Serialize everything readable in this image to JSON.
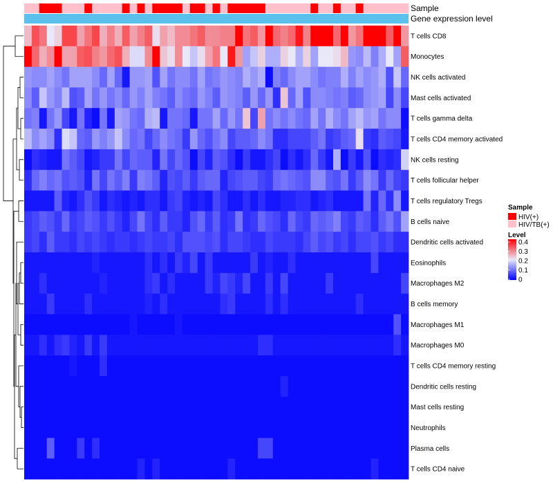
{
  "chart_data": {
    "type": "heatmap",
    "title": "",
    "annotation_tracks": [
      {
        "name": "Sample",
        "label": "Sample"
      },
      {
        "name": "Gene expression level",
        "label": "Gene expression level"
      }
    ],
    "legend_sample": {
      "title": "Sample",
      "entries": [
        {
          "label": "HIV(+)",
          "color": "#ff0000"
        },
        {
          "label": "HIV/TB(+)",
          "color": "#ffc0cb"
        }
      ]
    },
    "legend_level": {
      "title": "Level",
      "ticks": [
        {
          "value": 0.4,
          "label": "0.4"
        },
        {
          "value": 0.3,
          "label": "0.3"
        },
        {
          "value": 0.2,
          "label": "0.2"
        },
        {
          "value": 0.1,
          "label": "0.1"
        },
        {
          "value": 0,
          "label": "0"
        }
      ],
      "range": [
        0,
        0.4
      ],
      "colors": {
        "low": "#0000ff",
        "mid": "#e8e8f8",
        "high": "#ff0000"
      }
    },
    "expression_bar_color": "#5bc0eb",
    "sample_groups": [
      "HIV/TB(+)",
      "HIV/TB(+)",
      "HIV(+)",
      "HIV(+)",
      "HIV(+)",
      "HIV/TB(+)",
      "HIV/TB(+)",
      "HIV/TB(+)",
      "HIV(+)",
      "HIV/TB(+)",
      "HIV/TB(+)",
      "HIV/TB(+)",
      "HIV/TB(+)",
      "HIV(+)",
      "HIV/TB(+)",
      "HIV(+)",
      "HIV/TB(+)",
      "HIV(+)",
      "HIV(+)",
      "HIV(+)",
      "HIV(+)",
      "HIV/TB(+)",
      "HIV(+)",
      "HIV(+)",
      "HIV/TB(+)",
      "HIV(+)",
      "HIV/TB(+)",
      "HIV(+)",
      "HIV(+)",
      "HIV(+)",
      "HIV(+)",
      "HIV(+)",
      "HIV/TB(+)",
      "HIV/TB(+)",
      "HIV/TB(+)",
      "HIV/TB(+)",
      "HIV/TB(+)",
      "HIV/TB(+)",
      "HIV(+)",
      "HIV/TB(+)",
      "HIV/TB(+)",
      "HIV(+)",
      "HIV/TB(+)",
      "HIV/TB(+)",
      "HIV(+)",
      "HIV/TB(+)",
      "HIV/TB(+)",
      "HIV/TB(+)",
      "HIV/TB(+)",
      "HIV/TB(+)",
      "HIV/TB(+)"
    ],
    "rows": [
      "T cells CD8",
      "Monocytes",
      "NK cells activated",
      "Mast cells activated",
      "T cells gamma delta",
      "T cells CD4 memory activated",
      "NK cells resting",
      "T cells follicular helper",
      "T cells regulatory  Tregs",
      "B cells naive",
      "Dendritic cells activated",
      "Eosinophils",
      "Macrophages M2",
      "B cells memory",
      "Macrophages M1",
      "Macrophages M0",
      "T cells CD4 memory resting",
      "Dendritic cells resting",
      "Mast cells resting",
      "Neutrophils",
      "Plasma cells",
      "T cells CD4 naive"
    ],
    "values": [
      [
        0.24,
        0.33,
        0.3,
        0.2,
        0.22,
        0.34,
        0.34,
        0.26,
        0.3,
        0.34,
        0.25,
        0.29,
        0.25,
        0.32,
        0.26,
        0.29,
        0.32,
        0.21,
        0.26,
        0.24,
        0.28,
        0.28,
        0.3,
        0.32,
        0.28,
        0.28,
        0.29,
        0.29,
        0.4,
        0.3,
        0.32,
        0.27,
        0.4,
        0.31,
        0.29,
        0.31,
        0.38,
        0.29,
        0.4,
        0.4,
        0.4,
        0.31,
        0.4,
        0.27,
        0.3,
        0.4,
        0.4,
        0.4,
        0.32,
        0.4,
        0.27
      ],
      [
        0.4,
        0.31,
        0.25,
        0.28,
        0.4,
        0.26,
        0.26,
        0.32,
        0.33,
        0.29,
        0.27,
        0.31,
        0.33,
        0.25,
        0.19,
        0.19,
        0.28,
        0.4,
        0.23,
        0.21,
        0.28,
        0.2,
        0.17,
        0.21,
        0.26,
        0.3,
        0.2,
        0.38,
        0.27,
        0.14,
        0.17,
        0.22,
        0.15,
        0.15,
        0.22,
        0.2,
        0.15,
        0.22,
        0.14,
        0.2,
        0.2,
        0.21,
        0.24,
        0.13,
        0.12,
        0.16,
        0.11,
        0.15,
        0.2,
        0.14,
        0.32
      ],
      [
        0.13,
        0.12,
        0.12,
        0.14,
        0.12,
        0.1,
        0.14,
        0.14,
        0.14,
        0.12,
        0.09,
        0.14,
        0.09,
        0.02,
        0.13,
        0.13,
        0.14,
        0.07,
        0.14,
        0.1,
        0.12,
        0.12,
        0.1,
        0.14,
        0.1,
        0.11,
        0.13,
        0.12,
        0.11,
        0.15,
        0.13,
        0.15,
        0.01,
        0.11,
        0.09,
        0.12,
        0.14,
        0.14,
        0.12,
        0.1,
        0.11,
        0.11,
        0.15,
        0.11,
        0.14,
        0.12,
        0.13,
        0.15,
        0.07,
        0.17,
        0.09
      ],
      [
        0.12,
        0.08,
        0.17,
        0.13,
        0.11,
        0.16,
        0.07,
        0.08,
        0.14,
        0.1,
        0.13,
        0.1,
        0.12,
        0.09,
        0.13,
        0.11,
        0.14,
        0.11,
        0.1,
        0.08,
        0.12,
        0.1,
        0.09,
        0.13,
        0.11,
        0.08,
        0.13,
        0.12,
        0.11,
        0.08,
        0.13,
        0.09,
        0.13,
        0.04,
        0.23,
        0.09,
        0.14,
        0.07,
        0.12,
        0.12,
        0.11,
        0.1,
        0.11,
        0.08,
        0.09,
        0.12,
        0.13,
        0.14,
        0.06,
        0.12,
        0.06
      ],
      [
        0.1,
        0.11,
        0.02,
        0.1,
        0.13,
        0.06,
        0.02,
        0.1,
        0.03,
        0.01,
        0.1,
        0.02,
        0.14,
        0.13,
        0.1,
        0.09,
        0.15,
        0.16,
        0.02,
        0.1,
        0.1,
        0.09,
        0.02,
        0.1,
        0.1,
        0.14,
        0.09,
        0.13,
        0.1,
        0.23,
        0.06,
        0.26,
        0.1,
        0.12,
        0.1,
        0.12,
        0.1,
        0.09,
        0.14,
        0.1,
        0.15,
        0.12,
        0.1,
        0.14,
        0.16,
        0.13,
        0.14,
        0.1,
        0.12,
        0.12,
        0.01
      ],
      [
        0.16,
        0.12,
        0.14,
        0.12,
        0.04,
        0.19,
        0.17,
        0.09,
        0.08,
        0.13,
        0.11,
        0.13,
        0.17,
        0.12,
        0.09,
        0.1,
        0.06,
        0.09,
        0.12,
        0.1,
        0.09,
        0.05,
        0.13,
        0.09,
        0.07,
        0.1,
        0.12,
        0.06,
        0.08,
        0.08,
        0.09,
        0.12,
        0.1,
        0.04,
        0.04,
        0.06,
        0.06,
        0.06,
        0.08,
        0.1,
        0.05,
        0.06,
        0.08,
        0.09,
        0.21,
        0.05,
        0.04,
        0.08,
        0.07,
        0.06,
        0.02
      ],
      [
        0.01,
        0.04,
        0.03,
        0.02,
        0.02,
        0.1,
        0.08,
        0.06,
        0.02,
        0.03,
        0.05,
        0.05,
        0.1,
        0.06,
        0.09,
        0.08,
        0.08,
        0.03,
        0.1,
        0.06,
        0.09,
        0.07,
        0.01,
        0.06,
        0.03,
        0.08,
        0.07,
        0.04,
        0.01,
        0.05,
        0.02,
        0.02,
        0.04,
        0.06,
        0.01,
        0.04,
        0.02,
        0.04,
        0.09,
        0.05,
        0.02,
        0.15,
        0.01,
        0.05,
        0.02,
        0.07,
        0.01,
        0.04,
        0.03,
        0.04,
        0.18
      ],
      [
        0.04,
        0.09,
        0.11,
        0.09,
        0.1,
        0.07,
        0.08,
        0.07,
        0.03,
        0.1,
        0.06,
        0.1,
        0.08,
        0.11,
        0.05,
        0.11,
        0.1,
        0.08,
        0.03,
        0.07,
        0.06,
        0.08,
        0.05,
        0.08,
        0.09,
        0.09,
        0.03,
        0.06,
        0.07,
        0.08,
        0.08,
        0.06,
        0.05,
        0.09,
        0.1,
        0.09,
        0.08,
        0.07,
        0.12,
        0.12,
        0.08,
        0.07,
        0.1,
        0.05,
        0.08,
        0.12,
        0.1,
        0.05,
        0.09,
        0.06,
        0.05
      ],
      [
        0.02,
        0.02,
        0.02,
        0.02,
        0.08,
        0.03,
        0.02,
        0.04,
        0.07,
        0.05,
        0.02,
        0.04,
        0.03,
        0.02,
        0.03,
        0.02,
        0.04,
        0.04,
        0.02,
        0.05,
        0.06,
        0.03,
        0.02,
        0.03,
        0.02,
        0.06,
        0.04,
        0.02,
        0.02,
        0.04,
        0.02,
        0.04,
        0.02,
        0.02,
        0.03,
        0.03,
        0.04,
        0.04,
        0.02,
        0.03,
        0.04,
        0.02,
        0.02,
        0.02,
        0.02,
        0.1,
        0.03,
        0.09,
        0.04,
        0.12,
        0.02
      ],
      [
        0.05,
        0.06,
        0.08,
        0.07,
        0.05,
        0.09,
        0.05,
        0.06,
        0.08,
        0.07,
        0.05,
        0.07,
        0.05,
        0.03,
        0.06,
        0.1,
        0.06,
        0.04,
        0.08,
        0.05,
        0.05,
        0.03,
        0.07,
        0.09,
        0.05,
        0.08,
        0.04,
        0.05,
        0.1,
        0.04,
        0.05,
        0.09,
        0.07,
        0.06,
        0.04,
        0.09,
        0.06,
        0.05,
        0.09,
        0.08,
        0.09,
        0.11,
        0.06,
        0.05,
        0.08,
        0.07,
        0.04,
        0.08,
        0.1,
        0.07,
        0.14
      ],
      [
        0.05,
        0.06,
        0.04,
        0.08,
        0.05,
        0.05,
        0.04,
        0.06,
        0.05,
        0.06,
        0.05,
        0.04,
        0.05,
        0.05,
        0.04,
        0.05,
        0.06,
        0.05,
        0.05,
        0.06,
        0.04,
        0.07,
        0.07,
        0.07,
        0.06,
        0.07,
        0.04,
        0.06,
        0.06,
        0.05,
        0.04,
        0.04,
        0.06,
        0.05,
        0.05,
        0.05,
        0.04,
        0.06,
        0.08,
        0.06,
        0.07,
        0.05,
        0.06,
        0.04,
        0.06,
        0.06,
        0.07,
        0.05,
        0.06,
        0.04,
        0.04
      ],
      [
        0.02,
        0.02,
        0.02,
        0.02,
        0.02,
        0.02,
        0.02,
        0.02,
        0.02,
        0.03,
        0.02,
        0.02,
        0.02,
        0.02,
        0.02,
        0.02,
        0.04,
        0.02,
        0.04,
        0.02,
        0.05,
        0.03,
        0.06,
        0.02,
        0.05,
        0.02,
        0.02,
        0.02,
        0.02,
        0.02,
        0.05,
        0.02,
        0.03,
        0.02,
        0.02,
        0.04,
        0.02,
        0.02,
        0.02,
        0.02,
        0.02,
        0.02,
        0.02,
        0.02,
        0.02,
        0.02,
        0.06,
        0.02,
        0.02,
        0.02,
        0.02
      ],
      [
        0.02,
        0.02,
        0.04,
        0.02,
        0.02,
        0.02,
        0.02,
        0.02,
        0.02,
        0.02,
        0.03,
        0.02,
        0.02,
        0.02,
        0.02,
        0.02,
        0.04,
        0.05,
        0.02,
        0.04,
        0.02,
        0.02,
        0.02,
        0.02,
        0.05,
        0.03,
        0.06,
        0.05,
        0.03,
        0.06,
        0.02,
        0.02,
        0.05,
        0.02,
        0.06,
        0.02,
        0.02,
        0.02,
        0.02,
        0.02,
        0.05,
        0.02,
        0.02,
        0.02,
        0.02,
        0.02,
        0.02,
        0.02,
        0.02,
        0.02,
        0.06
      ],
      [
        0.02,
        0.02,
        0.02,
        0.05,
        0.02,
        0.02,
        0.02,
        0.02,
        0.04,
        0.02,
        0.02,
        0.02,
        0.02,
        0.02,
        0.02,
        0.02,
        0.03,
        0.02,
        0.04,
        0.02,
        0.02,
        0.02,
        0.02,
        0.02,
        0.02,
        0.02,
        0.04,
        0.05,
        0.02,
        0.02,
        0.02,
        0.02,
        0.04,
        0.02,
        0.04,
        0.02,
        0.02,
        0.02,
        0.02,
        0.02,
        0.02,
        0.02,
        0.02,
        0.02,
        0.04,
        0.02,
        0.02,
        0.02,
        0.02,
        0.02,
        0.02
      ],
      [
        0.01,
        0.01,
        0.01,
        0.01,
        0.01,
        0.01,
        0.01,
        0.01,
        0.01,
        0.01,
        0.01,
        0.01,
        0.01,
        0.01,
        0.02,
        0.01,
        0.01,
        0.01,
        0.01,
        0.01,
        0.02,
        0.01,
        0.01,
        0.01,
        0.01,
        0.01,
        0.01,
        0.01,
        0.01,
        0.01,
        0.01,
        0.01,
        0.01,
        0.01,
        0.01,
        0.01,
        0.01,
        0.01,
        0.01,
        0.01,
        0.01,
        0.01,
        0.01,
        0.01,
        0.01,
        0.01,
        0.01,
        0.01,
        0.01,
        0.07,
        0.01
      ],
      [
        0.02,
        0.02,
        0.04,
        0.02,
        0.04,
        0.05,
        0.03,
        0.02,
        0.05,
        0.02,
        0.05,
        0.02,
        0.02,
        0.02,
        0.02,
        0.02,
        0.02,
        0.02,
        0.02,
        0.02,
        0.02,
        0.02,
        0.02,
        0.02,
        0.02,
        0.02,
        0.02,
        0.02,
        0.02,
        0.02,
        0.02,
        0.04,
        0.04,
        0.02,
        0.02,
        0.02,
        0.02,
        0.02,
        0.02,
        0.02,
        0.02,
        0.02,
        0.02,
        0.02,
        0.02,
        0.02,
        0.02,
        0.02,
        0.02,
        0.04,
        0.02
      ],
      [
        0.01,
        0.01,
        0.01,
        0.01,
        0.01,
        0.01,
        0.02,
        0.01,
        0.01,
        0.01,
        0.04,
        0.01,
        0.01,
        0.01,
        0.01,
        0.01,
        0.01,
        0.01,
        0.01,
        0.01,
        0.01,
        0.01,
        0.01,
        0.01,
        0.01,
        0.01,
        0.01,
        0.01,
        0.01,
        0.01,
        0.01,
        0.01,
        0.01,
        0.01,
        0.01,
        0.01,
        0.01,
        0.01,
        0.01,
        0.01,
        0.01,
        0.01,
        0.01,
        0.01,
        0.01,
        0.01,
        0.01,
        0.01,
        0.01,
        0.01,
        0.01
      ],
      [
        0.01,
        0.01,
        0.01,
        0.01,
        0.01,
        0.01,
        0.01,
        0.01,
        0.01,
        0.01,
        0.01,
        0.01,
        0.01,
        0.01,
        0.01,
        0.01,
        0.01,
        0.01,
        0.01,
        0.01,
        0.01,
        0.01,
        0.01,
        0.01,
        0.01,
        0.01,
        0.01,
        0.01,
        0.01,
        0.01,
        0.01,
        0.01,
        0.01,
        0.01,
        0.03,
        0.01,
        0.01,
        0.01,
        0.01,
        0.01,
        0.01,
        0.01,
        0.01,
        0.01,
        0.01,
        0.01,
        0.01,
        0.01,
        0.01,
        0.01,
        0.01
      ],
      [
        0.01,
        0.01,
        0.01,
        0.01,
        0.01,
        0.01,
        0.01,
        0.01,
        0.01,
        0.01,
        0.01,
        0.01,
        0.01,
        0.01,
        0.01,
        0.01,
        0.01,
        0.01,
        0.01,
        0.01,
        0.01,
        0.01,
        0.01,
        0.01,
        0.01,
        0.01,
        0.01,
        0.01,
        0.01,
        0.01,
        0.01,
        0.01,
        0.01,
        0.01,
        0.01,
        0.01,
        0.01,
        0.01,
        0.01,
        0.01,
        0.01,
        0.01,
        0.01,
        0.01,
        0.01,
        0.01,
        0.01,
        0.01,
        0.01,
        0.01,
        0.01
      ],
      [
        0.01,
        0.01,
        0.01,
        0.01,
        0.01,
        0.01,
        0.01,
        0.01,
        0.01,
        0.01,
        0.01,
        0.01,
        0.01,
        0.01,
        0.01,
        0.01,
        0.01,
        0.01,
        0.01,
        0.01,
        0.01,
        0.01,
        0.01,
        0.01,
        0.01,
        0.01,
        0.01,
        0.01,
        0.01,
        0.01,
        0.01,
        0.01,
        0.01,
        0.01,
        0.01,
        0.01,
        0.01,
        0.01,
        0.01,
        0.01,
        0.01,
        0.01,
        0.01,
        0.01,
        0.01,
        0.01,
        0.01,
        0.01,
        0.01,
        0.01,
        0.01
      ],
      [
        0.01,
        0.01,
        0.01,
        0.08,
        0.01,
        0.01,
        0.01,
        0.05,
        0.01,
        0.04,
        0.01,
        0.01,
        0.01,
        0.01,
        0.01,
        0.01,
        0.01,
        0.01,
        0.01,
        0.01,
        0.01,
        0.01,
        0.01,
        0.01,
        0.01,
        0.01,
        0.01,
        0.01,
        0.01,
        0.01,
        0.01,
        0.06,
        0.06,
        0.01,
        0.01,
        0.01,
        0.01,
        0.01,
        0.01,
        0.01,
        0.01,
        0.01,
        0.01,
        0.01,
        0.01,
        0.01,
        0.01,
        0.01,
        0.01,
        0.01,
        0.01
      ],
      [
        0.01,
        0.01,
        0.01,
        0.01,
        0.01,
        0.01,
        0.01,
        0.01,
        0.01,
        0.01,
        0.01,
        0.01,
        0.01,
        0.01,
        0.01,
        0.03,
        0.01,
        0.03,
        0.01,
        0.01,
        0.01,
        0.01,
        0.01,
        0.01,
        0.01,
        0.01,
        0.01,
        0.03,
        0.01,
        0.01,
        0.01,
        0.01,
        0.01,
        0.01,
        0.01,
        0.01,
        0.01,
        0.01,
        0.01,
        0.01,
        0.01,
        0.01,
        0.01,
        0.01,
        0.01,
        0.01,
        0.03,
        0.01,
        0.01,
        0.01,
        0.01
      ]
    ]
  }
}
